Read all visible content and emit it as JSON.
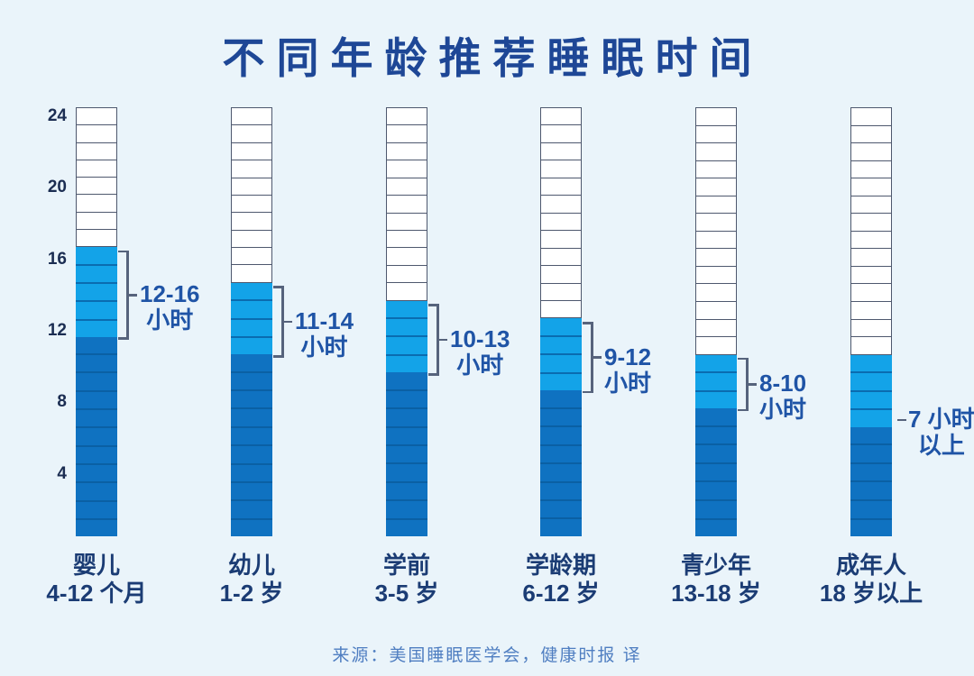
{
  "colors": {
    "background": "#EAF4FA",
    "title_text": "#1E4796",
    "tick_text": "#1B2D52",
    "range_text": "#1F54A6",
    "category_text": "#1B3C74",
    "source_text": "#4F7EC1",
    "light_blue": "#13A3E8",
    "light_blue_line": "#0A6CB0",
    "dark_blue": "#0F72C1",
    "dark_blue_line": "#0A60A4",
    "white_block": "#FFFFFF",
    "block_border": "#4E586E",
    "bracket": "#56637C"
  },
  "chart_data": {
    "type": "bar",
    "title": "不同年龄推荐睡眠时间",
    "source_note": "来源：美国睡眠医学会，健康时报 译",
    "unit": "小时",
    "ylim": [
      0,
      24
    ],
    "y_ticks": [
      24,
      20,
      16,
      12,
      8,
      4
    ],
    "block_hours": 1,
    "grid": "segmented-blocks",
    "columns": [
      {
        "group": "婴儿",
        "age": "4-12 个月",
        "min_hours": 12,
        "max_hours": 16,
        "range_label_line1": "12-16",
        "range_label_line2": "小时",
        "bracket": true
      },
      {
        "group": "幼儿",
        "age": "1-2 岁",
        "min_hours": 11,
        "max_hours": 14,
        "range_label_line1": "11-14",
        "range_label_line2": "小时",
        "bracket": true
      },
      {
        "group": "学前",
        "age": "3-5 岁",
        "min_hours": 10,
        "max_hours": 13,
        "range_label_line1": "10-13",
        "range_label_line2": "小时",
        "bracket": true
      },
      {
        "group": "学龄期",
        "age": "6-12 岁",
        "min_hours": 9,
        "max_hours": 12,
        "range_label_line1": "9-12",
        "range_label_line2": "小时",
        "bracket": true
      },
      {
        "group": "青少年",
        "age": "13-18 岁",
        "min_hours": 8,
        "max_hours": 10,
        "range_label_line1": "8-10",
        "range_label_line2": "小时",
        "bracket": true
      },
      {
        "group": "成年人",
        "age": "18 岁以上",
        "min_hours": 7,
        "max_hours": 10,
        "range_label_line1": "7 小时",
        "range_label_line2": "以上",
        "bracket": false
      }
    ]
  }
}
